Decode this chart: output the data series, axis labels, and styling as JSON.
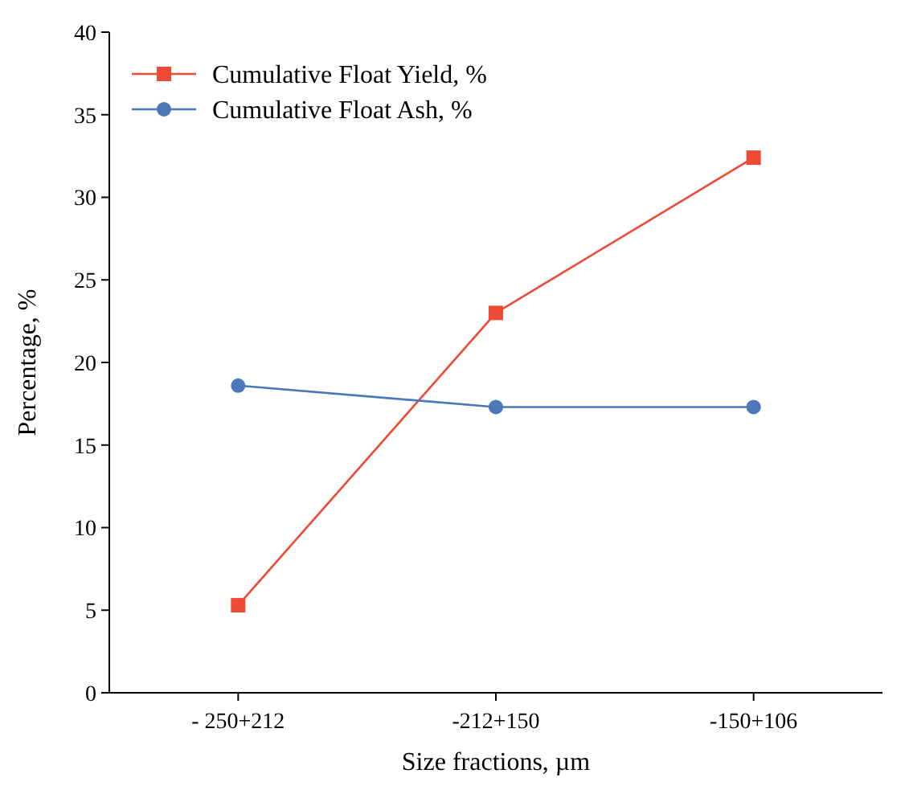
{
  "chart_data": {
    "type": "line",
    "xlabel": "Size fractions, µm",
    "ylabel": "Percentage, %",
    "categories": [
      "- 250+212",
      "-212+150",
      "-150+106"
    ],
    "ylim": [
      0,
      40
    ],
    "yticks": [
      0,
      5,
      10,
      15,
      20,
      25,
      30,
      35,
      40
    ],
    "grid": false,
    "legend": "top left",
    "series": [
      {
        "name": "Cumulative Float Yield, %",
        "color": "#ee4a36",
        "marker": "square",
        "values": [
          5.3,
          23.0,
          32.4
        ]
      },
      {
        "name": "Cumulative Float Ash, %",
        "color": "#4a78b8",
        "marker": "circle",
        "values": [
          18.6,
          17.3,
          17.3
        ]
      }
    ]
  }
}
